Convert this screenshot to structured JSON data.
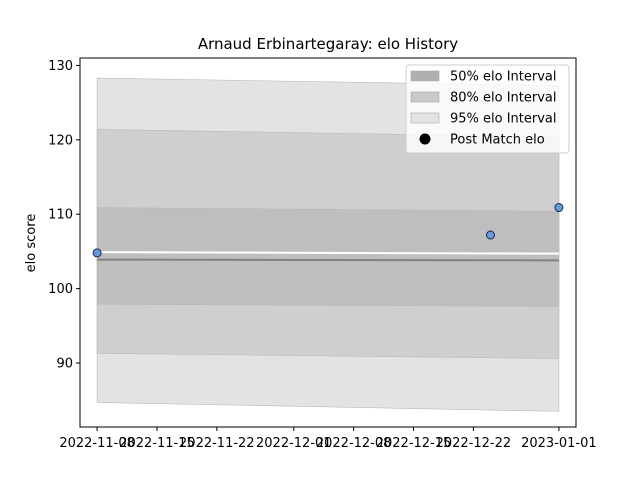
{
  "chart_data": {
    "type": "area",
    "title": "Arnaud Erbinartegaray: elo History",
    "xlabel": "",
    "ylabel": "elo score",
    "x_ticks": [
      "2022-11-08",
      "2022-11-15",
      "2022-11-22",
      "2022-12-01",
      "2022-12-08",
      "2022-12-15",
      "2022-12-22",
      "2023-01-01"
    ],
    "xlim": [
      "2022-11-06",
      "2023-01-03"
    ],
    "ylim": [
      81.4,
      131.0
    ],
    "y_ticks": [
      90,
      100,
      110,
      120,
      130
    ],
    "grid": false,
    "legend_position": "top-right",
    "band_x": [
      "2022-11-08",
      "2023-01-01"
    ],
    "bands": [
      {
        "name": "95% elo Interval",
        "color": "#e3e3e3",
        "upper": [
          128.3,
          127.3
        ],
        "lower": [
          84.7,
          83.5
        ]
      },
      {
        "name": "80% elo Interval",
        "color": "#cfcfcf",
        "upper": [
          121.4,
          120.4
        ],
        "lower": [
          91.3,
          90.6
        ]
      },
      {
        "name": "50% elo Interval",
        "color": "#bebebe",
        "upper": [
          110.9,
          110.4
        ],
        "lower": [
          97.9,
          97.6
        ]
      }
    ],
    "center_line": {
      "color": "#808080",
      "values": [
        103.9,
        103.8
      ]
    },
    "white_line": {
      "color": "#ffffff",
      "values": [
        104.9,
        104.7
      ]
    },
    "points": {
      "name": "Post Match elo",
      "color": "#6a9ad8",
      "x": [
        "2022-11-08",
        "2022-12-24",
        "2023-01-01"
      ],
      "y": [
        104.8,
        107.2,
        110.9
      ]
    },
    "legend": [
      {
        "label": "50% elo Interval",
        "kind": "patch",
        "color": "#b0b0b0"
      },
      {
        "label": "80% elo Interval",
        "kind": "patch",
        "color": "#c9c9c9"
      },
      {
        "label": "95% elo Interval",
        "kind": "patch",
        "color": "#e3e3e3"
      },
      {
        "label": "Post Match elo",
        "kind": "marker",
        "color": "#000000"
      }
    ]
  }
}
